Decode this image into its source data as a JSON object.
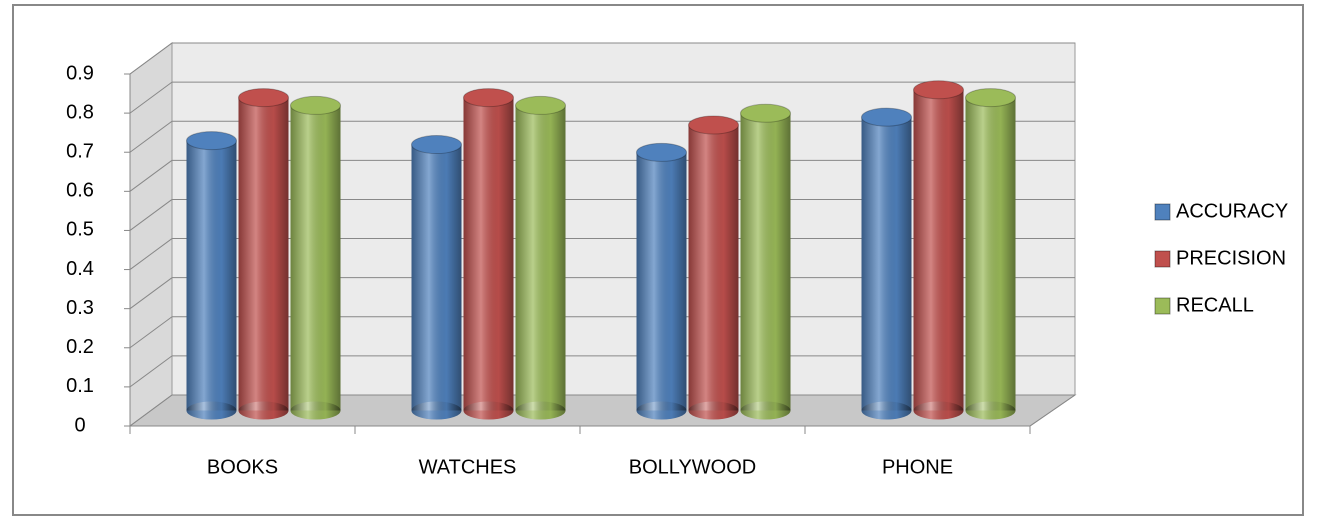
{
  "chart_data": {
    "type": "bar3d",
    "categories": [
      "BOOKS",
      "WATCHES",
      "BOLLYWOOD",
      "PHONE"
    ],
    "series": [
      {
        "name": "ACCURACY",
        "color": "#4f81bd",
        "values": [
          0.69,
          0.68,
          0.66,
          0.75
        ]
      },
      {
        "name": "PRECISION",
        "color": "#c0504d",
        "values": [
          0.8,
          0.8,
          0.73,
          0.82
        ]
      },
      {
        "name": "RECALL",
        "color": "#9bbb59",
        "values": [
          0.78,
          0.78,
          0.76,
          0.8
        ]
      }
    ],
    "ylim": [
      0,
      0.9
    ],
    "yticks": [
      0,
      0.1,
      0.2,
      0.3,
      0.4,
      0.5,
      0.6,
      0.7,
      0.8,
      0.9
    ],
    "grid": true,
    "legend": "right"
  }
}
